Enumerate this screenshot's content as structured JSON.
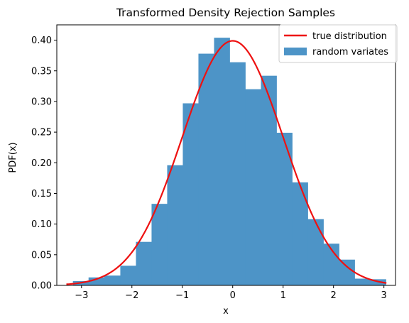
{
  "chart_data": {
    "type": "bar",
    "title": "Transformed Density Rejection Samples",
    "xlabel": "x",
    "ylabel": "PDF(x)",
    "xlim": [
      -3.49,
      3.23
    ],
    "ylim": [
      0,
      0.425
    ],
    "xticks": [
      -3,
      -2,
      -1,
      0,
      1,
      2,
      3
    ],
    "xtick_labels": [
      "−3",
      "−2",
      "−1",
      "0",
      "1",
      "2",
      "3"
    ],
    "yticks": [
      0.0,
      0.05,
      0.1,
      0.15,
      0.2,
      0.25,
      0.3,
      0.35,
      0.4
    ],
    "ytick_labels": [
      "0.00",
      "0.05",
      "0.10",
      "0.15",
      "0.20",
      "0.25",
      "0.30",
      "0.35",
      "0.40"
    ],
    "legend_position": "top-right",
    "histogram": {
      "name": "random variates",
      "color": "#4d94c7",
      "bin_edges": [
        -3.17,
        -2.86,
        -2.55,
        -2.23,
        -1.92,
        -1.61,
        -1.3,
        -0.99,
        -0.68,
        -0.37,
        -0.06,
        0.25,
        0.56,
        0.87,
        1.18,
        1.49,
        1.8,
        2.11,
        2.42,
        2.73,
        3.04
      ],
      "values": [
        0.007,
        0.013,
        0.016,
        0.032,
        0.071,
        0.133,
        0.196,
        0.297,
        0.378,
        0.404,
        0.364,
        0.32,
        0.342,
        0.249,
        0.168,
        0.108,
        0.068,
        0.042,
        0.011,
        0.01
      ]
    },
    "curve": {
      "name": "true distribution",
      "color": "#ee1111",
      "function": "standard normal pdf",
      "x_range": [
        -3.3,
        3.05
      ]
    }
  }
}
